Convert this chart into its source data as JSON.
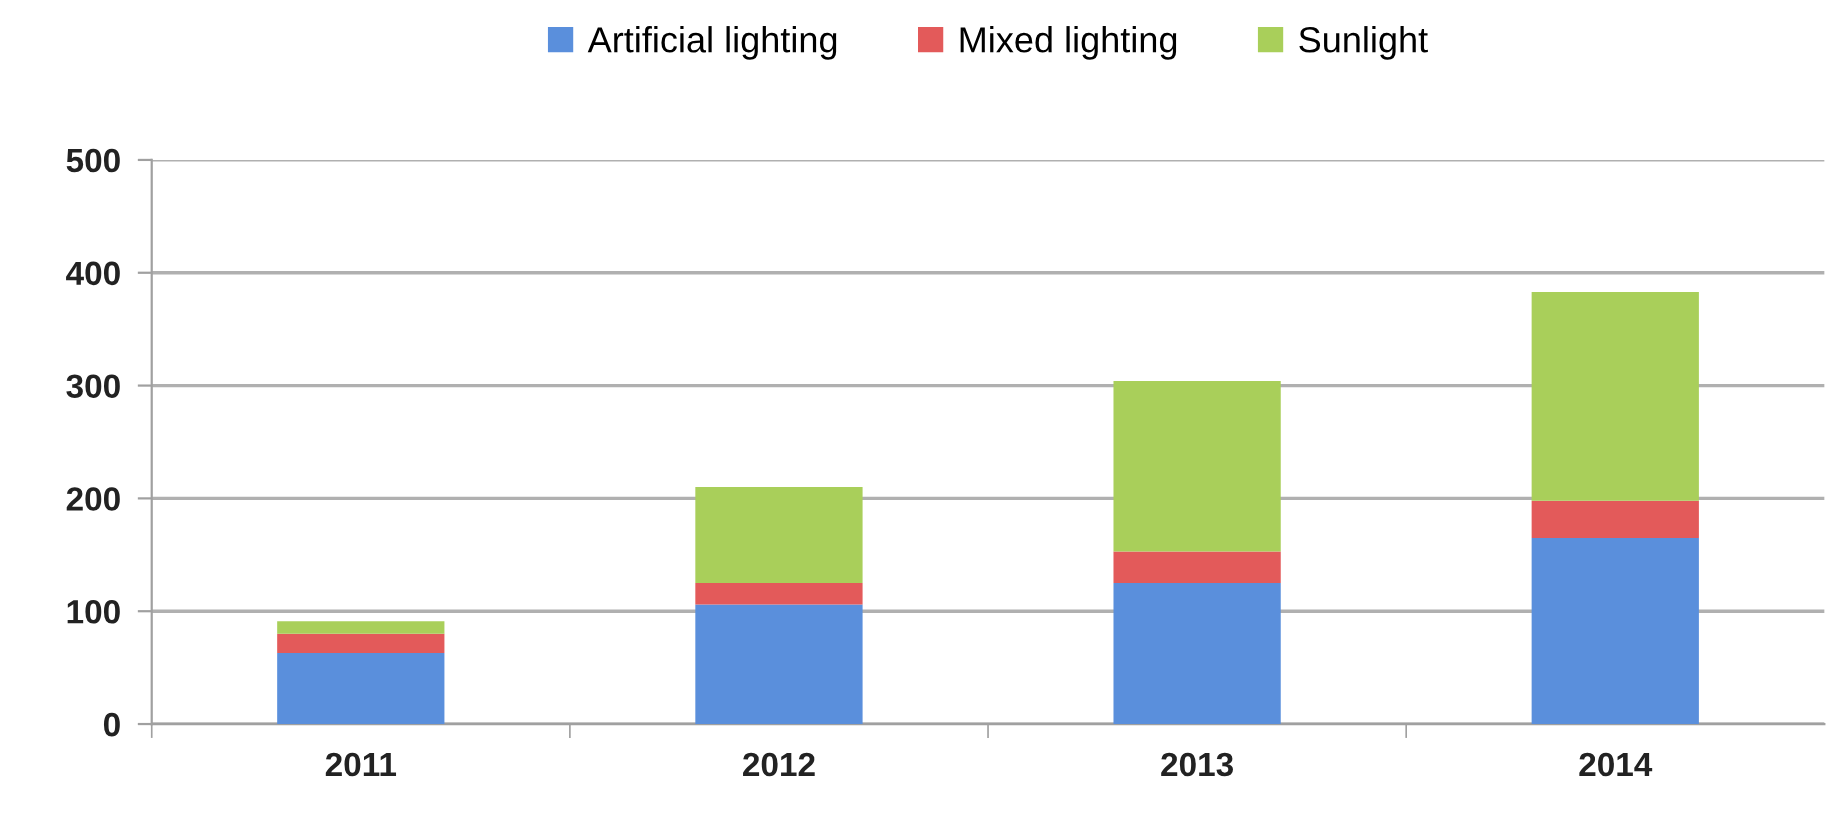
{
  "chart_data": {
    "type": "bar",
    "stacked": true,
    "categories": [
      "2011",
      "2012",
      "2013",
      "2014"
    ],
    "series": [
      {
        "name": "Artificial lighting",
        "color": "#5a8fdc",
        "values": [
          63,
          106,
          125,
          165
        ]
      },
      {
        "name": "Mixed lighting",
        "color": "#e35a5a",
        "values": [
          17,
          19,
          28,
          33
        ]
      },
      {
        "name": "Sunlight",
        "color": "#a9cf5a",
        "values": [
          11,
          85,
          151,
          185
        ]
      }
    ],
    "ylim": [
      0,
      500
    ],
    "yticks": [
      0,
      100,
      200,
      300,
      400,
      500
    ],
    "grid": "y",
    "legend": "top"
  }
}
